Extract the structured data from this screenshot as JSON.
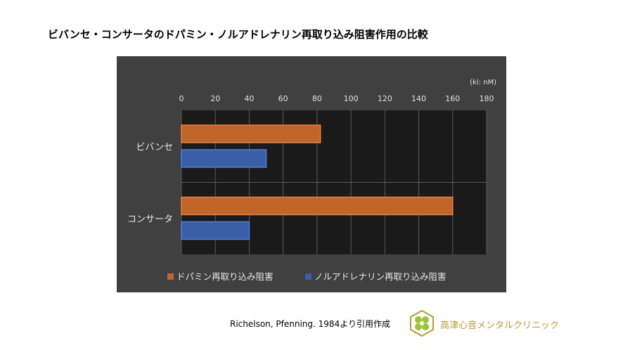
{
  "title": "ビバンセ・コンサータのドパミン・ノルアドレナリン再取り込み阻害作用の比較",
  "chart_data": {
    "type": "bar",
    "orientation": "horizontal",
    "categories": [
      "ビバンセ",
      "コンサータ"
    ],
    "series": [
      {
        "name": "ドパミン再取り込み阻害",
        "values": [
          82,
          160
        ],
        "color": "#c0652a"
      },
      {
        "name": "ノルアドレナリン再取り込み阻害",
        "values": [
          50,
          40
        ],
        "color": "#3a5fa8"
      }
    ],
    "unit": "(ki: nM)",
    "xlim": [
      0,
      180
    ],
    "ticks": [
      "0",
      "20",
      "40",
      "60",
      "80",
      "100",
      "120",
      "140",
      "160",
      "180"
    ],
    "grid": true,
    "legend": "bottom"
  },
  "source": "Richelson, Pfenning. 1984より引用作成",
  "clinic": "高津心音メンタルクリニック"
}
